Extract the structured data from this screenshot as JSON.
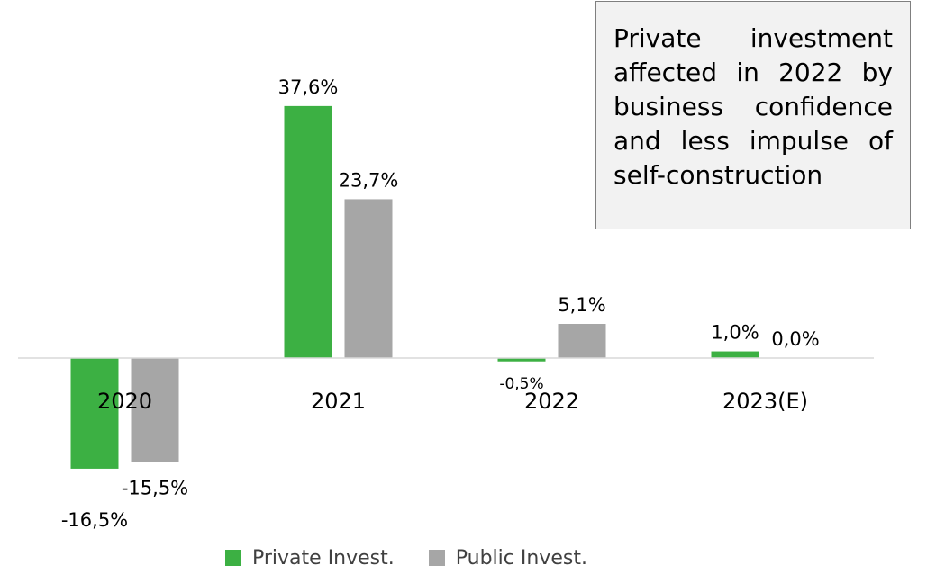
{
  "chart_data": {
    "type": "bar",
    "categories": [
      "2020",
      "2021",
      "2022",
      "2023(E)"
    ],
    "series": [
      {
        "name": "Private Invest.",
        "color": "#3cb043",
        "values": [
          -16.5,
          37.6,
          -0.5,
          1.0
        ],
        "labels": [
          "-16,5%",
          "37,6%",
          "-0,5%",
          "1,0%"
        ]
      },
      {
        "name": "Public Invest.",
        "color": "#a6a6a6",
        "values": [
          -15.5,
          23.7,
          5.1,
          0.0
        ],
        "labels": [
          "-15,5%",
          "23,7%",
          "5,1%",
          "0,0%"
        ]
      }
    ],
    "grid": false,
    "legend_position": "bottom"
  },
  "annotation": {
    "text": "Private investment affected in 2022 by business confidence and less impulse of self-construction"
  },
  "legend": {
    "private_label": "Private Invest.",
    "public_label": "Public Invest."
  }
}
